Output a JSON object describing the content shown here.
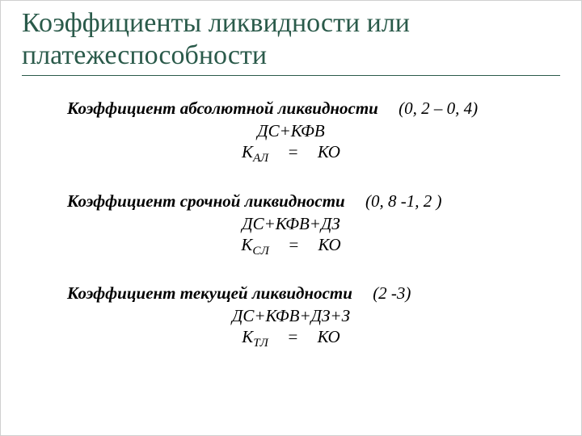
{
  "title": "Коэффициенты ликвидности или платежеспособности",
  "colors": {
    "title": "#2a5a4a",
    "rule": "#2a5a4a",
    "text": "#000000",
    "background": "#ffffff"
  },
  "typography": {
    "title_fontsize": 34,
    "body_fontsize": 21,
    "font_family": "Times New Roman"
  },
  "sections": [
    {
      "heading": "Коэффициент абсолютной ликвидности",
      "range": "(0, 2 – 0, 4)",
      "coef_label": "К",
      "coef_sub": "АЛ",
      "eq": "=",
      "numerator": "ДС+КФВ",
      "denominator": "КО"
    },
    {
      "heading": "Коэффициент срочной ликвидности",
      "range": "(0, 8 -1, 2 )",
      "coef_label": "К",
      "coef_sub": "СЛ",
      "eq": "=",
      "numerator": "ДС+КФВ+ДЗ",
      "denominator": "КО"
    },
    {
      "heading": "Коэффициент текущей ликвидности",
      "range": "(2 -3)",
      "coef_label": "К",
      "coef_sub": "ТЛ",
      "eq": "=",
      "numerator": "ДС+КФВ+ДЗ+З",
      "denominator": "КО"
    }
  ]
}
